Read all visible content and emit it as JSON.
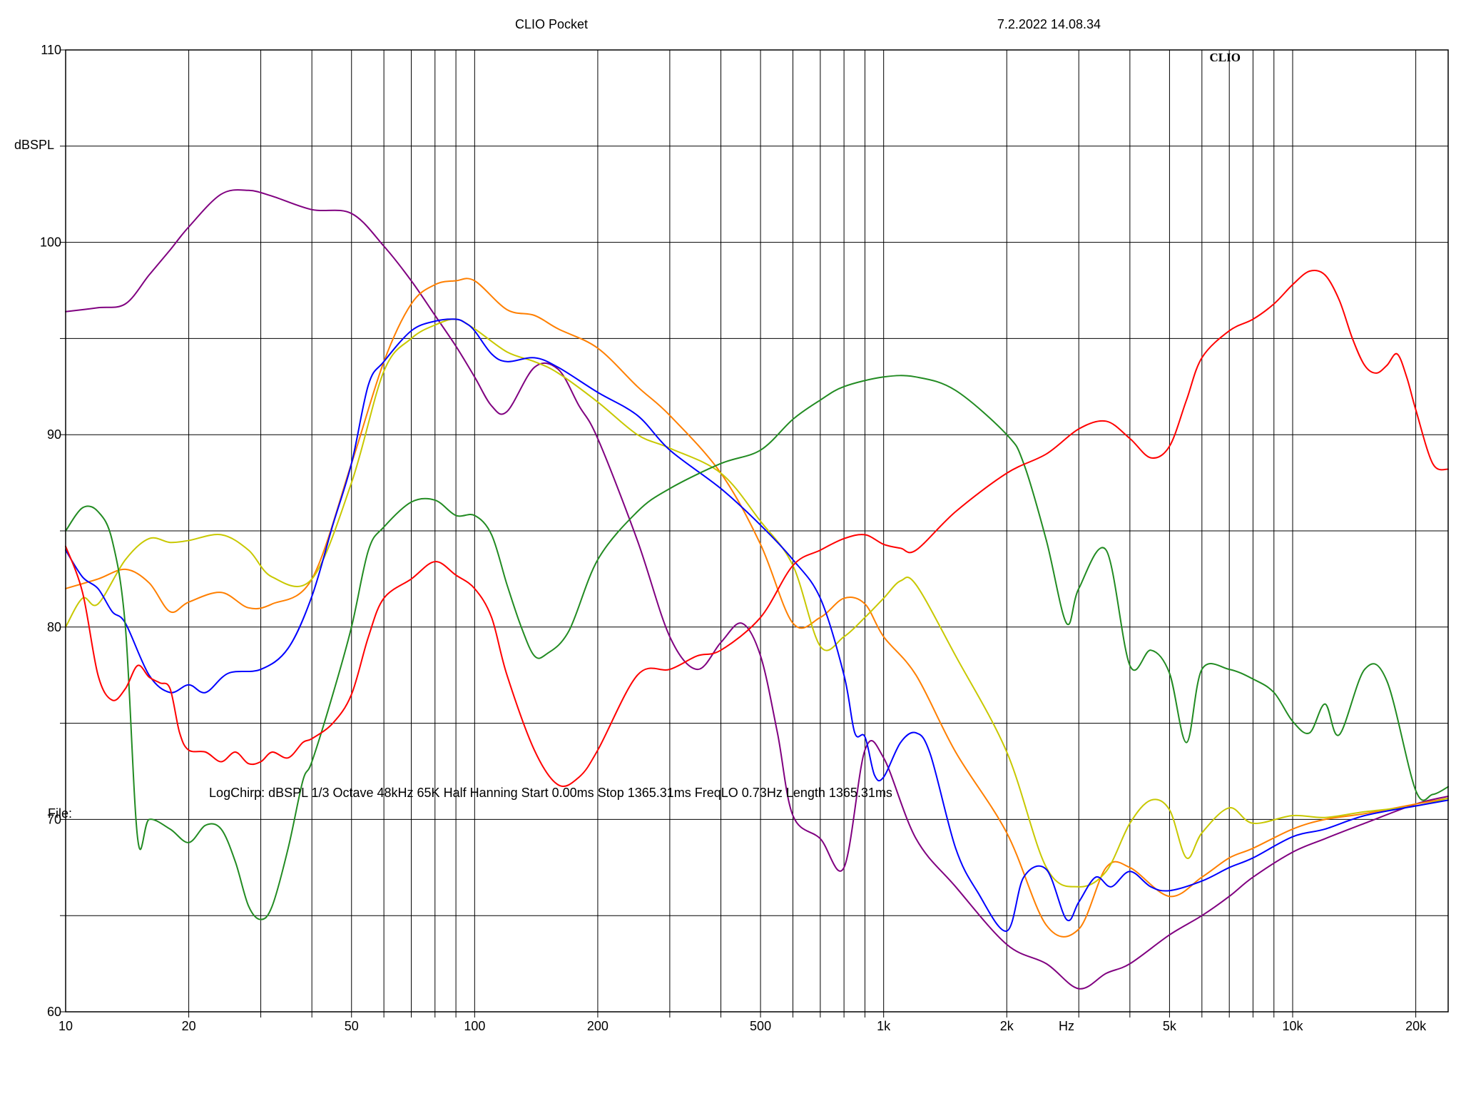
{
  "header": {
    "title": "CLIO Pocket",
    "datetime": "7.2.2022 14.08.34"
  },
  "logo_text": "CLIO",
  "footer": {
    "settings": "LogChirp:  dBSPL   1/3 Octave   48kHz   65K   Half Hanning   Start 0.00ms    Stop 1365.31ms    FreqLO 0.73Hz    Length 1365.31ms",
    "file_label": "File:"
  },
  "chart_data": {
    "type": "line",
    "title": "CLIO Pocket",
    "ylabel": "dBSPL",
    "xlabel": "Hz",
    "xscale": "log",
    "xlim": [
      10,
      24000
    ],
    "ylim": [
      60,
      110
    ],
    "grid": true,
    "x_ticks": [
      {
        "value": 10,
        "label": "10"
      },
      {
        "value": 20,
        "label": "20"
      },
      {
        "value": 50,
        "label": "50"
      },
      {
        "value": 100,
        "label": "100"
      },
      {
        "value": 200,
        "label": "200"
      },
      {
        "value": 500,
        "label": "500"
      },
      {
        "value": 1000,
        "label": "1k"
      },
      {
        "value": 2000,
        "label": "2k"
      },
      {
        "value": 5000,
        "label": "5k"
      },
      {
        "value": 10000,
        "label": "10k"
      },
      {
        "value": 20000,
        "label": "20k"
      }
    ],
    "x_unit_label": {
      "value": 2800,
      "label": "Hz"
    },
    "y_ticks": [
      {
        "value": 60,
        "label": "60"
      },
      {
        "value": 70,
        "label": "70"
      },
      {
        "value": 80,
        "label": "80"
      },
      {
        "value": 90,
        "label": "90"
      },
      {
        "value": 100,
        "label": "100"
      },
      {
        "value": 110,
        "label": "110"
      }
    ],
    "y_minor_grid": [
      65,
      75,
      85,
      95,
      105
    ],
    "series": [
      {
        "color": "#800080",
        "x": [
          10,
          12,
          14,
          16,
          18,
          20,
          24,
          28,
          32,
          40,
          50,
          60,
          70,
          80,
          90,
          100,
          110,
          120,
          140,
          160,
          180,
          200,
          250,
          300,
          350,
          400,
          450,
          500,
          550,
          600,
          700,
          800,
          900,
          1000,
          1200,
          1500,
          2000,
          2500,
          3000,
          3500,
          4000,
          5000,
          6000,
          7000,
          8000,
          10000,
          12000,
          15000,
          20000,
          24000
        ],
        "y": [
          96.4,
          96.6,
          96.8,
          98.3,
          99.6,
          100.8,
          102.5,
          102.7,
          102.4,
          101.7,
          101.5,
          99.8,
          98,
          96.2,
          94.6,
          93,
          91.5,
          91.2,
          93.5,
          93.4,
          91.5,
          89.8,
          84.5,
          79.5,
          77.8,
          79.2,
          80.2,
          78.5,
          74.5,
          70.2,
          69,
          67.5,
          73.6,
          73.2,
          69,
          66.5,
          63.5,
          62.5,
          61.2,
          62,
          62.5,
          64,
          65,
          66,
          67,
          68.3,
          69,
          69.8,
          70.8,
          71.2
        ]
      },
      {
        "color": "#ff7f00",
        "x": [
          10,
          12,
          14,
          16,
          18,
          20,
          24,
          28,
          32,
          40,
          50,
          60,
          70,
          80,
          90,
          100,
          120,
          140,
          160,
          200,
          250,
          300,
          400,
          500,
          600,
          700,
          800,
          900,
          1000,
          1200,
          1500,
          2000,
          2500,
          3000,
          3500,
          4000,
          5000,
          6000,
          7000,
          8000,
          10000,
          12000,
          15000,
          20000,
          24000
        ],
        "y": [
          82,
          82.5,
          83,
          82.3,
          80.8,
          81.3,
          81.8,
          81,
          81.2,
          82.5,
          88.5,
          93.8,
          96.8,
          97.8,
          98,
          98,
          96.5,
          96.2,
          95.5,
          94.5,
          92.5,
          91,
          88,
          84.3,
          80.2,
          80.5,
          81.5,
          81.2,
          79.5,
          77.5,
          73.5,
          69.3,
          64.5,
          64.3,
          67.5,
          67.5,
          66,
          67,
          68,
          68.5,
          69.5,
          70,
          70.3,
          70.8,
          71.1
        ]
      },
      {
        "color": "#c8c800",
        "x": [
          10,
          11,
          12,
          14,
          16,
          18,
          20,
          24,
          28,
          32,
          40,
          50,
          60,
          70,
          80,
          90,
          100,
          120,
          140,
          160,
          200,
          250,
          300,
          400,
          500,
          600,
          700,
          800,
          900,
          1000,
          1100,
          1200,
          1500,
          2000,
          2500,
          3000,
          3500,
          4000,
          4500,
          5000,
          5500,
          6000,
          7000,
          8000,
          10000,
          12000,
          15000,
          20000,
          24000
        ],
        "y": [
          80,
          81.5,
          81.2,
          83.5,
          84.6,
          84.4,
          84.5,
          84.8,
          84,
          82.6,
          82.5,
          87.5,
          93.3,
          95,
          95.7,
          96,
          95.5,
          94.3,
          93.8,
          93.2,
          91.7,
          90,
          89.3,
          88,
          85.5,
          83.2,
          79,
          79.5,
          80.5,
          81.5,
          82.4,
          82.2,
          78.5,
          73.5,
          67.5,
          66.5,
          67.3,
          69.8,
          71,
          70.5,
          68,
          69.3,
          70.6,
          69.8,
          70.2,
          70.1,
          70.4,
          70.7,
          71.1
        ]
      },
      {
        "color": "#0000ff",
        "x": [
          10,
          11,
          12,
          13,
          14,
          16,
          18,
          20,
          22,
          25,
          30,
          35,
          40,
          45,
          50,
          55,
          60,
          70,
          80,
          90,
          95,
          100,
          110,
          120,
          140,
          160,
          200,
          250,
          300,
          400,
          500,
          600,
          700,
          800,
          850,
          900,
          950,
          1000,
          1100,
          1200,
          1300,
          1500,
          1700,
          2000,
          2200,
          2500,
          2800,
          3000,
          3300,
          3600,
          4000,
          4500,
          5000,
          6000,
          7000,
          8000,
          10000,
          12000,
          15000,
          20000,
          24000
        ],
        "y": [
          84,
          82.6,
          82,
          80.8,
          80.2,
          77.5,
          76.6,
          77,
          76.6,
          77.6,
          77.8,
          78.9,
          81.6,
          85.3,
          88.5,
          92.6,
          93.8,
          95.4,
          95.9,
          96,
          95.8,
          95.4,
          94.2,
          93.8,
          94,
          93.5,
          92.2,
          91,
          89.2,
          87.2,
          85.3,
          83.5,
          81.5,
          77.5,
          74.5,
          74.3,
          72.3,
          72.2,
          74,
          74.5,
          73.4,
          68.5,
          66.2,
          64.2,
          67,
          67.4,
          64.8,
          65.7,
          67,
          66.5,
          67.3,
          66.5,
          66.3,
          66.8,
          67.5,
          68,
          69.1,
          69.5,
          70.2,
          70.7,
          71
        ]
      },
      {
        "color": "#228b22",
        "x": [
          10,
          11,
          12,
          13,
          14,
          15,
          16,
          18,
          20,
          22,
          24,
          26,
          28,
          30,
          32,
          35,
          38,
          40,
          45,
          50,
          55,
          60,
          70,
          80,
          90,
          100,
          110,
          120,
          130,
          140,
          150,
          170,
          200,
          250,
          300,
          400,
          500,
          600,
          700,
          800,
          1000,
          1200,
          1500,
          2000,
          2200,
          2500,
          2800,
          3000,
          3500,
          4000,
          4500,
          5000,
          5500,
          6000,
          7000,
          8000,
          9000,
          10000,
          11000,
          12000,
          13000,
          15000,
          17000,
          20000,
          22000,
          24000
        ],
        "y": [
          85,
          86.2,
          86,
          84.5,
          80,
          69,
          70,
          69.5,
          68.8,
          69.7,
          69.5,
          67.8,
          65.5,
          64.8,
          65.5,
          68.5,
          72,
          73,
          76.5,
          80,
          84,
          85.2,
          86.5,
          86.6,
          85.8,
          85.8,
          84.8,
          82.2,
          80,
          78.5,
          78.6,
          79.8,
          83.5,
          86,
          87.2,
          88.5,
          89.2,
          90.8,
          91.8,
          92.5,
          93,
          93,
          92.3,
          90,
          88.5,
          84.5,
          80.2,
          82,
          84,
          78,
          78.8,
          77.6,
          74,
          77.8,
          77.8,
          77.3,
          76.6,
          75.1,
          74.5,
          76,
          74.4,
          77.8,
          77.2,
          71.5,
          71.3,
          71.7
        ]
      },
      {
        "color": "#ff0000",
        "x": [
          10,
          11,
          12,
          13,
          14,
          15,
          16,
          17,
          18,
          19,
          20,
          22,
          24,
          26,
          28,
          30,
          32,
          35,
          38,
          40,
          45,
          50,
          55,
          60,
          70,
          80,
          90,
          100,
          110,
          120,
          140,
          160,
          180,
          200,
          250,
          300,
          350,
          400,
          500,
          600,
          700,
          800,
          900,
          1000,
          1100,
          1200,
          1500,
          2000,
          2500,
          3000,
          3500,
          4000,
          4500,
          5000,
          5500,
          6000,
          7000,
          8000,
          9000,
          10000,
          11000,
          12000,
          13000,
          14000,
          15000,
          16000,
          17000,
          18000,
          19000,
          20000,
          22000,
          24000
        ],
        "y": [
          84.2,
          81.8,
          77.5,
          76.2,
          76.8,
          78,
          77.4,
          77.1,
          76.8,
          74.5,
          73.6,
          73.5,
          73,
          73.5,
          72.9,
          73,
          73.5,
          73.2,
          74,
          74.2,
          75,
          76.5,
          79.5,
          81.5,
          82.5,
          83.4,
          82.7,
          82,
          80.5,
          77.5,
          73.6,
          71.8,
          72.2,
          73.6,
          77.5,
          77.8,
          78.5,
          78.8,
          80.5,
          83.2,
          84,
          84.6,
          84.8,
          84.3,
          84.1,
          84,
          86,
          88,
          89,
          90.3,
          90.7,
          89.8,
          88.8,
          89.4,
          91.8,
          94,
          95.4,
          96,
          96.8,
          97.8,
          98.5,
          98.3,
          97,
          95,
          93.6,
          93.2,
          93.6,
          94.2,
          93,
          91.3,
          88.5,
          88.2
        ]
      }
    ]
  }
}
